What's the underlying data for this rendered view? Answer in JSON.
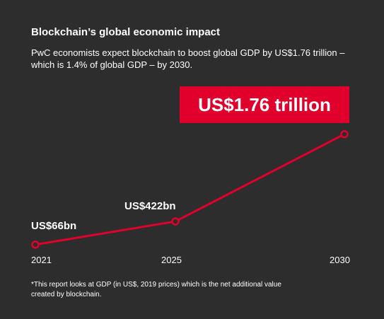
{
  "title": "Blockchain’s global economic impact",
  "subtitle": "PwC economists expect blockchain to boost global GDP by US$1.76 trillion – which is 1.4% of global GDP – by 2030.",
  "footnote": "*This report looks at GDP (in US$, 2019 prices) which is the net additional value created by blockchain.",
  "colors": {
    "background": "#2d2d2d",
    "accent": "#e0002b",
    "text": "#ffffff"
  },
  "chart_data": {
    "type": "line",
    "x": [
      "2021",
      "2025",
      "2030"
    ],
    "values": [
      66,
      422,
      1760
    ],
    "value_labels": [
      "US$66bn",
      "US$422bn",
      "US$1.76 trillion"
    ],
    "y_unit": "US$ billion",
    "ylim": [
      0,
      1800
    ],
    "grid": false,
    "legend": "none"
  }
}
